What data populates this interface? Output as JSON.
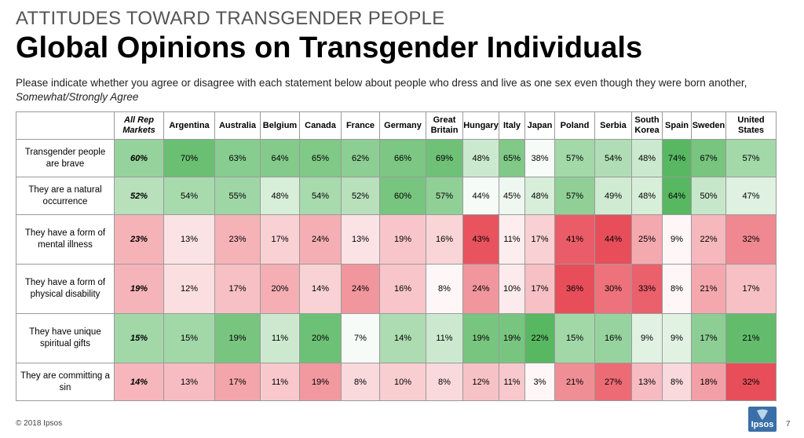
{
  "header": {
    "kicker": "ATTITUDES TOWARD TRANSGENDER PEOPLE",
    "title": "Global Opinions on Transgender Individuals",
    "subtitle": "Please indicate whether you agree or disagree with each statement below about people who dress and live as one sex even though they were born another,",
    "subtitle_em": "Somewhat/Strongly Agree"
  },
  "footer": {
    "copyright": "© 2018 Ipsos",
    "logo_text": "Ipsos",
    "page_number": "7"
  },
  "colors": {
    "agree_scale": "#5cb85c",
    "disagree_scale": "#e8505b",
    "border": "#9a9a9a"
  },
  "chart_data": {
    "type": "table",
    "columns": [
      "All Rep Markets",
      "Argentina",
      "Australia",
      "Belgium",
      "Canada",
      "France",
      "Germany",
      "Great Britain",
      "Hungary",
      "Italy",
      "Japan",
      "Poland",
      "Serbia",
      "South Korea",
      "Spain",
      "Sweden",
      "United States"
    ],
    "rows": [
      {
        "label": "Transgender people are brave",
        "scale": "green",
        "values": [
          60,
          70,
          63,
          64,
          65,
          62,
          66,
          69,
          48,
          65,
          38,
          57,
          54,
          48,
          74,
          67,
          57
        ]
      },
      {
        "label": "They are a natural occurrence",
        "scale": "green",
        "values": [
          52,
          54,
          55,
          48,
          54,
          52,
          60,
          57,
          44,
          45,
          48,
          57,
          49,
          48,
          64,
          50,
          47
        ]
      },
      {
        "label": "They have a form of mental illness",
        "scale": "red",
        "values": [
          23,
          13,
          23,
          17,
          24,
          13,
          19,
          16,
          43,
          11,
          17,
          41,
          44,
          25,
          9,
          22,
          32
        ]
      },
      {
        "label": "They have a form of physical disability",
        "scale": "red",
        "values": [
          19,
          12,
          17,
          20,
          14,
          24,
          16,
          8,
          24,
          10,
          17,
          36,
          30,
          33,
          8,
          21,
          17
        ]
      },
      {
        "label": "They have unique spiritual gifts",
        "scale": "green",
        "values": [
          15,
          15,
          19,
          11,
          20,
          7,
          14,
          11,
          19,
          19,
          22,
          15,
          16,
          9,
          9,
          17,
          21
        ]
      },
      {
        "label": "They are committing a sin",
        "scale": "red",
        "values": [
          14,
          13,
          17,
          11,
          19,
          8,
          10,
          8,
          12,
          11,
          3,
          21,
          27,
          13,
          8,
          18,
          32
        ]
      }
    ],
    "value_suffix": "%"
  }
}
